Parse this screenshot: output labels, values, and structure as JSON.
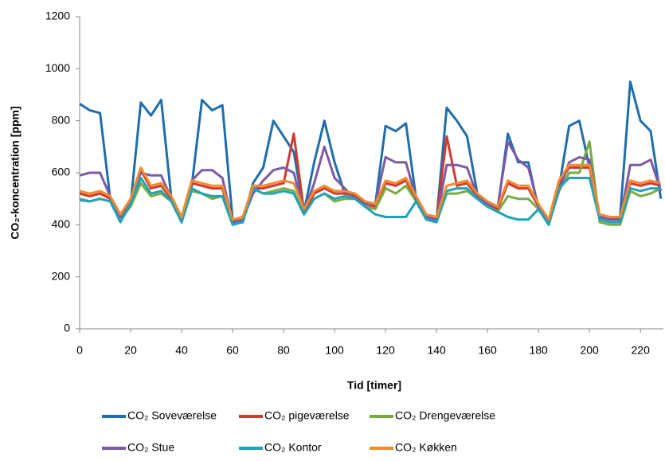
{
  "chart_data": {
    "type": "line",
    "y_label": "CO₂-koncentration [ppm]",
    "x_label": "Tid [timer]",
    "xlim": [
      0,
      229
    ],
    "ylim": [
      0,
      1200
    ],
    "xticks": [
      0,
      20,
      40,
      60,
      80,
      100,
      120,
      140,
      160,
      180,
      200,
      220
    ],
    "yticks": [
      0,
      200,
      400,
      600,
      800,
      1000,
      1200
    ],
    "grid": false,
    "x": [
      0,
      4,
      8,
      12,
      16,
      20,
      24,
      28,
      32,
      36,
      40,
      44,
      48,
      52,
      56,
      60,
      64,
      68,
      72,
      76,
      80,
      84,
      88,
      92,
      96,
      100,
      104,
      108,
      112,
      116,
      120,
      124,
      128,
      132,
      136,
      140,
      144,
      148,
      152,
      156,
      160,
      164,
      168,
      172,
      176,
      180,
      184,
      188,
      192,
      196,
      200,
      204,
      208,
      212,
      216,
      220,
      224,
      228
    ],
    "series": [
      {
        "name": "CO₂ Soveværelse",
        "color": "#1f6eaa",
        "values": [
          865,
          840,
          830,
          500,
          420,
          480,
          870,
          820,
          880,
          500,
          410,
          550,
          880,
          840,
          860,
          420,
          410,
          560,
          620,
          800,
          740,
          680,
          450,
          640,
          800,
          640,
          520,
          520,
          480,
          480,
          780,
          760,
          790,
          500,
          430,
          420,
          850,
          800,
          740,
          520,
          480,
          460,
          750,
          640,
          640,
          460,
          410,
          540,
          780,
          800,
          620,
          430,
          420,
          430,
          950,
          800,
          760,
          500
        ]
      },
      {
        "name": "CO₂ pigeværelse",
        "color": "#d03a2f",
        "values": [
          520,
          510,
          520,
          500,
          430,
          490,
          610,
          540,
          550,
          500,
          420,
          560,
          550,
          540,
          540,
          410,
          420,
          540,
          540,
          550,
          560,
          750,
          450,
          520,
          540,
          520,
          520,
          510,
          480,
          470,
          560,
          550,
          570,
          500,
          430,
          420,
          740,
          550,
          560,
          510,
          480,
          460,
          560,
          540,
          540,
          470,
          410,
          560,
          620,
          620,
          620,
          430,
          420,
          420,
          560,
          550,
          560,
          550
        ]
      },
      {
        "name": "CO₂ Drengeværelse",
        "color": "#77ac45",
        "values": [
          500,
          490,
          500,
          490,
          420,
          470,
          560,
          510,
          520,
          490,
          410,
          530,
          520,
          500,
          510,
          400,
          420,
          540,
          520,
          530,
          540,
          530,
          440,
          500,
          520,
          490,
          500,
          500,
          470,
          460,
          540,
          520,
          550,
          490,
          420,
          410,
          520,
          520,
          530,
          500,
          470,
          450,
          510,
          500,
          500,
          460,
          400,
          530,
          600,
          600,
          720,
          410,
          400,
          400,
          530,
          510,
          520,
          540
        ]
      },
      {
        "name": "CO₂ Stue",
        "color": "#7d5aa6",
        "values": [
          590,
          600,
          600,
          510,
          430,
          500,
          600,
          590,
          590,
          500,
          420,
          570,
          610,
          610,
          580,
          410,
          420,
          520,
          570,
          610,
          620,
          600,
          450,
          560,
          700,
          580,
          540,
          500,
          480,
          480,
          660,
          640,
          640,
          500,
          430,
          420,
          630,
          630,
          620,
          510,
          480,
          470,
          720,
          650,
          620,
          470,
          410,
          530,
          640,
          660,
          650,
          430,
          420,
          420,
          630,
          630,
          650,
          530
        ]
      },
      {
        "name": "CO₂ Kontor",
        "color": "#1fa3b8",
        "values": [
          495,
          490,
          500,
          490,
          410,
          480,
          580,
          520,
          530,
          490,
          410,
          540,
          520,
          510,
          510,
          400,
          410,
          540,
          520,
          520,
          530,
          520,
          440,
          500,
          520,
          500,
          510,
          500,
          470,
          440,
          430,
          430,
          430,
          490,
          420,
          410,
          530,
          540,
          540,
          500,
          470,
          450,
          430,
          420,
          420,
          460,
          400,
          540,
          580,
          580,
          580,
          420,
          410,
          410,
          540,
          530,
          540,
          540
        ]
      },
      {
        "name": "CO₂ Køkken",
        "color": "#f28a2e",
        "values": [
          530,
          520,
          530,
          510,
          440,
          500,
          620,
          550,
          560,
          510,
          430,
          570,
          560,
          550,
          550,
          420,
          430,
          550,
          550,
          560,
          570,
          560,
          460,
          530,
          550,
          530,
          530,
          520,
          490,
          480,
          570,
          560,
          580,
          510,
          440,
          430,
          550,
          560,
          570,
          520,
          490,
          470,
          570,
          550,
          550,
          480,
          420,
          570,
          630,
          630,
          630,
          440,
          430,
          430,
          570,
          560,
          570,
          560
        ]
      }
    ]
  }
}
